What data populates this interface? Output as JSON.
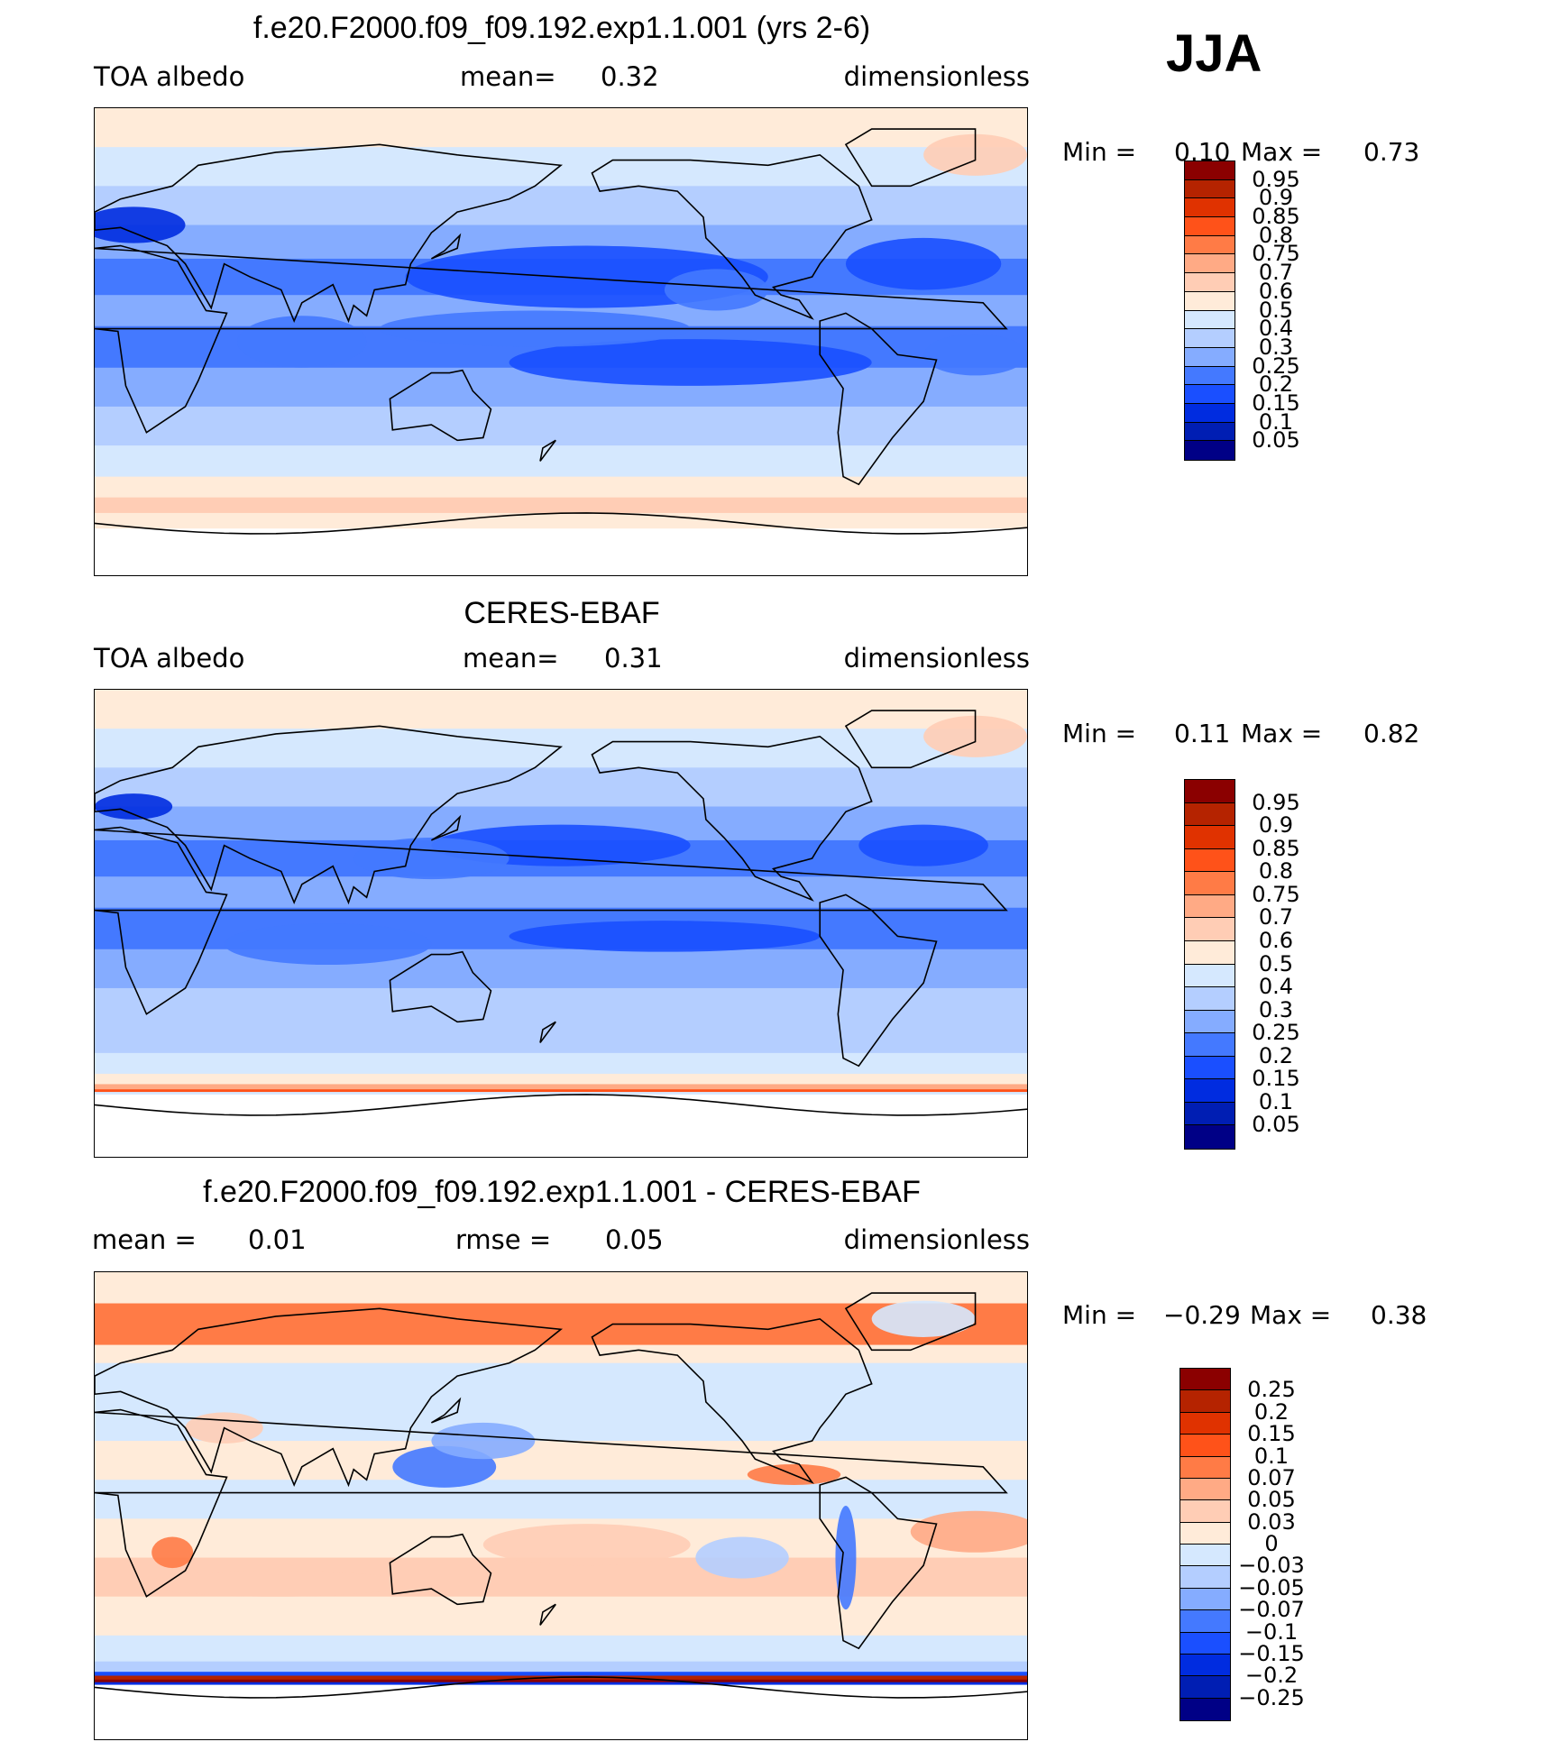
{
  "header": {
    "season": "JJA"
  },
  "chart_data": [
    {
      "type": "heatmap",
      "title": "f.e20.F2000.f09_f09.192.exp1.1.001 (yrs 2-6)",
      "left_label": "TOA albedo",
      "center_label": "mean=",
      "center_value": "0.32",
      "units": "dimensionless",
      "min_label": "Min =",
      "min": "0.10",
      "max_label": "Max =",
      "max": "0.73",
      "levels": [
        "0.95",
        "0.9",
        "0.85",
        "0.8",
        "0.75",
        "0.7",
        "0.6",
        "0.5",
        "0.4",
        "0.3",
        "0.25",
        "0.2",
        "0.15",
        "0.1",
        "0.05"
      ],
      "colors": [
        "#8b0000",
        "#b52300",
        "#e03200",
        "#ff5219",
        "#ff7b46",
        "#ffaa85",
        "#ffcdb5",
        "#ffebd9",
        "#d5e8fe",
        "#b4ceff",
        "#85acff",
        "#4479ff",
        "#1a4fff",
        "#002ce0",
        "#001eb3",
        "#000086"
      ]
    },
    {
      "type": "heatmap",
      "title": "CERES-EBAF",
      "left_label": "TOA albedo",
      "center_label": "mean=",
      "center_value": "0.31",
      "units": "dimensionless",
      "min_label": "Min =",
      "min": "0.11",
      "max_label": "Max =",
      "max": "0.82",
      "levels": [
        "0.95",
        "0.9",
        "0.85",
        "0.8",
        "0.75",
        "0.7",
        "0.6",
        "0.5",
        "0.4",
        "0.3",
        "0.25",
        "0.2",
        "0.15",
        "0.1",
        "0.05"
      ],
      "colors": [
        "#8b0000",
        "#b52300",
        "#e03200",
        "#ff5219",
        "#ff7b46",
        "#ffaa85",
        "#ffcdb5",
        "#ffebd9",
        "#d5e8fe",
        "#b4ceff",
        "#85acff",
        "#4479ff",
        "#1a4fff",
        "#002ce0",
        "#001eb3",
        "#000086"
      ]
    },
    {
      "type": "heatmap",
      "title": "f.e20.F2000.f09_f09.192.exp1.1.001 - CERES-EBAF",
      "left_label": "mean =",
      "left_value": "0.01",
      "center_label": "rmse =",
      "center_value": "0.05",
      "units": "dimensionless",
      "min_label": "Min =",
      "min": "−0.29",
      "max_label": "Max =",
      "max": "0.38",
      "levels": [
        "0.25",
        "0.2",
        "0.15",
        "0.1",
        "0.07",
        "0.05",
        "0.03",
        "0",
        "−0.03",
        "−0.05",
        "−0.07",
        "−0.1",
        "−0.15",
        "−0.2",
        "−0.25"
      ],
      "colors": [
        "#8b0000",
        "#b52300",
        "#e03200",
        "#ff5219",
        "#ff7b46",
        "#ffaa85",
        "#ffcdb5",
        "#ffebd9",
        "#d5e8fe",
        "#b4ceff",
        "#85acff",
        "#4479ff",
        "#1a4fff",
        "#002ce0",
        "#001eb3",
        "#000086"
      ]
    }
  ]
}
